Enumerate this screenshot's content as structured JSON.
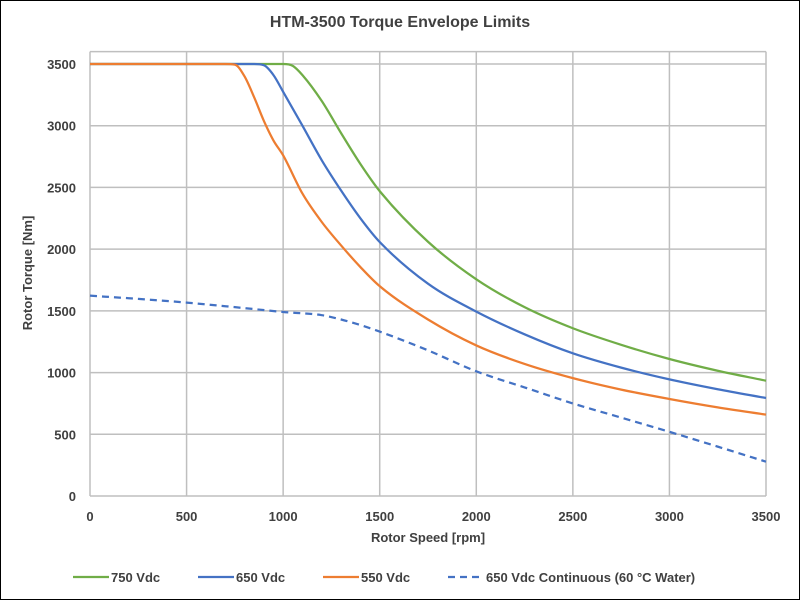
{
  "chart_data": {
    "type": "line",
    "title": "HTM-3500 Torque Envelope Limits",
    "xlabel": "Rotor Speed [rpm]",
    "ylabel": "Rotor Torque [Nm]",
    "xlim": [
      0,
      3500
    ],
    "ylim": [
      0,
      3600
    ],
    "xticks": [
      0,
      500,
      1000,
      1500,
      2000,
      2500,
      3000,
      3500
    ],
    "yticks": [
      0,
      500,
      1000,
      1500,
      2000,
      2500,
      3000,
      3500
    ],
    "grid": true,
    "legend_position": "bottom",
    "series": [
      {
        "name": "750 Vdc",
        "color": "#70ad47",
        "dash": false,
        "x": [
          0,
          1000,
          1050,
          1100,
          1200,
          1300,
          1400,
          1500,
          1750,
          2000,
          2250,
          2500,
          2750,
          3000,
          3250,
          3500
        ],
        "y": [
          3500,
          3500,
          3485,
          3410,
          3200,
          2940,
          2690,
          2470,
          2060,
          1756,
          1530,
          1359,
          1225,
          1110,
          1015,
          934
        ]
      },
      {
        "name": "650 Vdc",
        "color": "#4472c4",
        "dash": false,
        "x": [
          0,
          850,
          900,
          950,
          1000,
          1100,
          1200,
          1300,
          1400,
          1500,
          1750,
          2000,
          2250,
          2500,
          2750,
          3000,
          3250,
          3500
        ],
        "y": [
          3500,
          3500,
          3490,
          3410,
          3275,
          3000,
          2720,
          2475,
          2250,
          2058,
          1720,
          1494,
          1310,
          1156,
          1040,
          945,
          865,
          794
        ]
      },
      {
        "name": "550 Vdc",
        "color": "#ed7d31",
        "dash": false,
        "x": [
          0,
          700,
          750,
          800,
          850,
          900,
          950,
          1000,
          1100,
          1200,
          1300,
          1400,
          1500,
          1750,
          2000,
          2250,
          2500,
          2750,
          3000,
          3250,
          3500
        ],
        "y": [
          3500,
          3500,
          3495,
          3400,
          3230,
          3040,
          2880,
          2760,
          2450,
          2220,
          2030,
          1855,
          1700,
          1430,
          1220,
          1070,
          955,
          862,
          786,
          718,
          659
        ]
      },
      {
        "name": "650 Vdc Continuous (60 °C Water)",
        "color": "#4472c4",
        "dash": true,
        "x": [
          0,
          250,
          500,
          750,
          1000,
          1200,
          1300,
          1400,
          1500,
          1750,
          2000,
          2250,
          2500,
          2750,
          3000,
          3250,
          3500
        ],
        "y": [
          1623,
          1597,
          1567,
          1530,
          1491,
          1465,
          1430,
          1385,
          1332,
          1180,
          1010,
          880,
          750,
          635,
          520,
          400,
          278
        ]
      }
    ]
  }
}
